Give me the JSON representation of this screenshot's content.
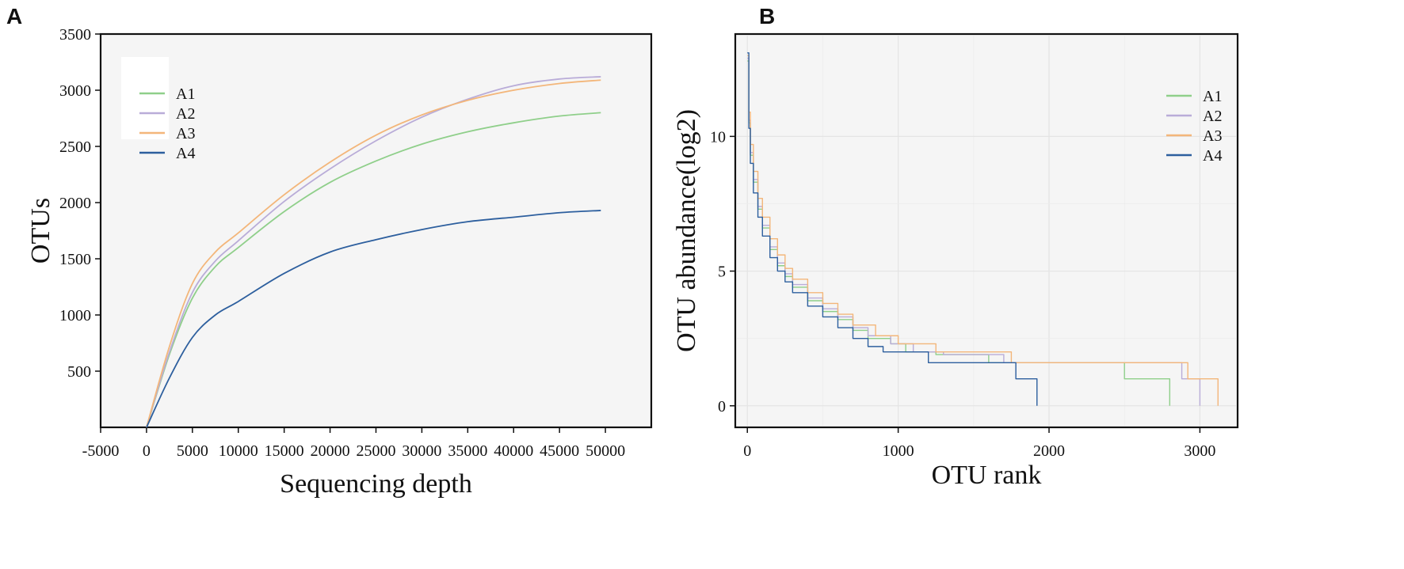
{
  "chart_data": [
    {
      "panel": "A",
      "type": "line",
      "title": "",
      "xlabel": "Sequencing depth",
      "ylabel": "OTUs",
      "xlim": [
        -5000,
        55000
      ],
      "ylim": [
        0,
        3500
      ],
      "xticks": [
        -5000,
        0,
        5000,
        10000,
        15000,
        20000,
        25000,
        30000,
        35000,
        40000,
        45000,
        50000
      ],
      "yticks": [
        500,
        1000,
        1500,
        2000,
        2500,
        3000,
        3500
      ],
      "grid": false,
      "legend_position": "top-left",
      "x": [
        0,
        2500,
        5000,
        7500,
        10000,
        15000,
        20000,
        25000,
        30000,
        35000,
        40000,
        45000,
        49500
      ],
      "series": [
        {
          "name": "A1",
          "color": "#8fcf8a",
          "values": [
            0,
            650,
            1150,
            1430,
            1600,
            1920,
            2180,
            2370,
            2520,
            2630,
            2710,
            2770,
            2800
          ]
        },
        {
          "name": "A2",
          "color": "#b9acd8",
          "values": [
            0,
            670,
            1200,
            1480,
            1660,
            2010,
            2300,
            2550,
            2760,
            2920,
            3040,
            3100,
            3120
          ]
        },
        {
          "name": "A3",
          "color": "#f3b67a",
          "values": [
            0,
            720,
            1280,
            1560,
            1730,
            2070,
            2360,
            2600,
            2780,
            2910,
            3000,
            3060,
            3090
          ]
        },
        {
          "name": "A4",
          "color": "#2d5f9e",
          "values": [
            0,
            440,
            800,
            1000,
            1120,
            1370,
            1560,
            1670,
            1760,
            1830,
            1870,
            1910,
            1930
          ]
        }
      ]
    },
    {
      "panel": "B",
      "type": "line",
      "title": "",
      "xlabel": "OTU rank",
      "ylabel": "OTU abundance(log2)",
      "xlim": [
        -80,
        3250
      ],
      "ylim": [
        -0.8,
        13.8
      ],
      "xticks": [
        0,
        1000,
        2000,
        3000
      ],
      "yticks": [
        0,
        5,
        10
      ],
      "grid": true,
      "legend_position": "top-right",
      "series": [
        {
          "name": "A1",
          "color": "#8fcf8a",
          "points": [
            [
              0,
              12.8
            ],
            [
              10,
              10.5
            ],
            [
              20,
              9.3
            ],
            [
              40,
              8.3
            ],
            [
              70,
              7.3
            ],
            [
              100,
              6.6
            ],
            [
              150,
              5.8
            ],
            [
              200,
              5.2
            ],
            [
              250,
              4.8
            ],
            [
              300,
              4.4
            ],
            [
              400,
              3.9
            ],
            [
              500,
              3.5
            ],
            [
              600,
              3.2
            ],
            [
              700,
              2.8
            ],
            [
              800,
              2.5
            ],
            [
              950,
              2.3
            ],
            [
              1050,
              2.0
            ],
            [
              1250,
              1.9
            ],
            [
              1600,
              1.6
            ],
            [
              2500,
              1.0
            ],
            [
              2800,
              0
            ]
          ]
        },
        {
          "name": "A2",
          "color": "#b9acd8",
          "points": [
            [
              0,
              12.9
            ],
            [
              10,
              10.6
            ],
            [
              20,
              9.4
            ],
            [
              40,
              8.4
            ],
            [
              70,
              7.4
            ],
            [
              100,
              6.7
            ],
            [
              150,
              5.9
            ],
            [
              200,
              5.3
            ],
            [
              250,
              4.9
            ],
            [
              300,
              4.5
            ],
            [
              400,
              4.0
            ],
            [
              500,
              3.6
            ],
            [
              600,
              3.3
            ],
            [
              700,
              2.9
            ],
            [
              800,
              2.6
            ],
            [
              950,
              2.3
            ],
            [
              1100,
              2.0
            ],
            [
              1300,
              1.9
            ],
            [
              1700,
              1.6
            ],
            [
              2880,
              1.0
            ],
            [
              3000,
              0
            ]
          ]
        },
        {
          "name": "A3",
          "color": "#f3b67a",
          "points": [
            [
              0,
              13.0
            ],
            [
              10,
              10.9
            ],
            [
              20,
              9.7
            ],
            [
              40,
              8.7
            ],
            [
              70,
              7.7
            ],
            [
              100,
              7.0
            ],
            [
              150,
              6.2
            ],
            [
              200,
              5.6
            ],
            [
              250,
              5.1
            ],
            [
              300,
              4.7
            ],
            [
              400,
              4.2
            ],
            [
              500,
              3.8
            ],
            [
              600,
              3.4
            ],
            [
              700,
              3.0
            ],
            [
              850,
              2.6
            ],
            [
              1000,
              2.3
            ],
            [
              1250,
              2.0
            ],
            [
              1750,
              1.6
            ],
            [
              2920,
              1.0
            ],
            [
              3120,
              0
            ]
          ]
        },
        {
          "name": "A4",
          "color": "#2d5f9e",
          "points": [
            [
              0,
              13.1
            ],
            [
              10,
              10.3
            ],
            [
              20,
              9.0
            ],
            [
              40,
              7.9
            ],
            [
              70,
              7.0
            ],
            [
              100,
              6.3
            ],
            [
              150,
              5.5
            ],
            [
              200,
              5.0
            ],
            [
              250,
              4.6
            ],
            [
              300,
              4.2
            ],
            [
              400,
              3.7
            ],
            [
              500,
              3.3
            ],
            [
              600,
              2.9
            ],
            [
              700,
              2.5
            ],
            [
              800,
              2.2
            ],
            [
              900,
              2.0
            ],
            [
              1200,
              1.6
            ],
            [
              1780,
              1.0
            ],
            [
              1920,
              0
            ]
          ]
        }
      ]
    }
  ]
}
